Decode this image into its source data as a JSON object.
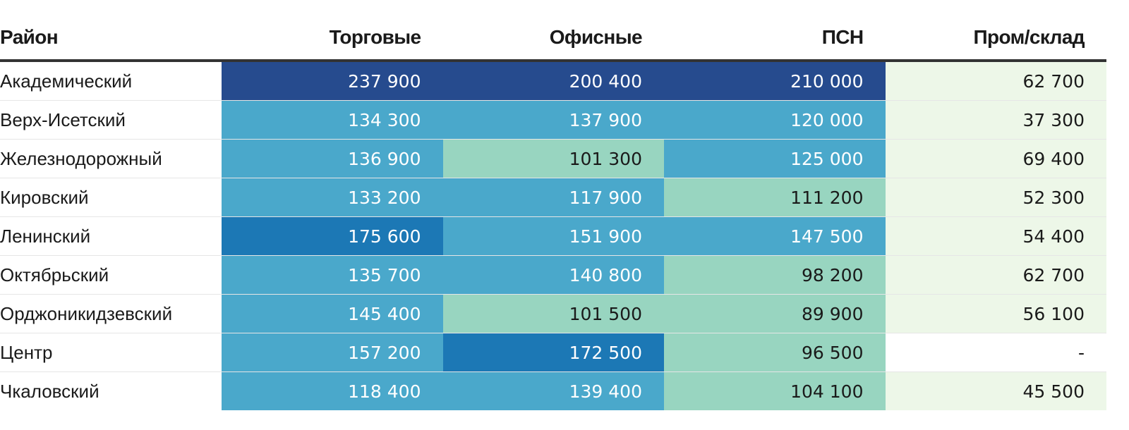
{
  "chart_data": {
    "type": "table",
    "columns": [
      "Район",
      "Торговые",
      "Офисные",
      "ПСН",
      "Пром/склад"
    ],
    "rows": [
      {
        "name": "Академический",
        "values": [
          "237 900",
          "200 400",
          "210 000",
          "62 700"
        ]
      },
      {
        "name": "Верх-Исетский",
        "values": [
          "134 300",
          "137 900",
          "120 000",
          "37 300"
        ]
      },
      {
        "name": "Железнодорожный",
        "values": [
          "136 900",
          "101 300",
          "125 000",
          "69 400"
        ]
      },
      {
        "name": "Кировский",
        "values": [
          "133 200",
          "117 900",
          "111 200",
          "52 300"
        ]
      },
      {
        "name": "Ленинский",
        "values": [
          "175 600",
          "151 900",
          "147 500",
          "54 400"
        ]
      },
      {
        "name": "Октябрьский",
        "values": [
          "135 700",
          "140 800",
          "98 200",
          "62 700"
        ]
      },
      {
        "name": "Орджоникидзевский",
        "values": [
          "145 400",
          "101 500",
          "89 900",
          "56 100"
        ]
      },
      {
        "name": "Центр",
        "values": [
          "157 200",
          "172 500",
          "96 500",
          "-"
        ]
      },
      {
        "name": "Чкаловский",
        "values": [
          "118 400",
          "139 400",
          "104 100",
          "45 500"
        ]
      }
    ],
    "cell_colors": [
      [
        "#264b8e",
        "#264b8e",
        "#264b8e",
        "#edf7e8"
      ],
      [
        "#4aa8cb",
        "#4aa8cb",
        "#4aa8cb",
        "#edf7e8"
      ],
      [
        "#4aa8cb",
        "#98d5c0",
        "#4aa8cb",
        "#edf7e8"
      ],
      [
        "#4aa8cb",
        "#4aa8cb",
        "#98d5c0",
        "#edf7e8"
      ],
      [
        "#1c78b5",
        "#4aa8cb",
        "#4aa8cb",
        "#edf7e8"
      ],
      [
        "#4aa8cb",
        "#4aa8cb",
        "#98d5c0",
        "#edf7e8"
      ],
      [
        "#4aa8cb",
        "#98d5c0",
        "#98d5c0",
        "#edf7e8"
      ],
      [
        "#4aa8cb",
        "#1c78b5",
        "#98d5c0",
        "#ffffff"
      ],
      [
        "#4aa8cb",
        "#4aa8cb",
        "#98d5c0",
        "#edf7e8"
      ]
    ],
    "text_on_dark": "#ffffff",
    "text_on_light": "#1a1a1a"
  }
}
